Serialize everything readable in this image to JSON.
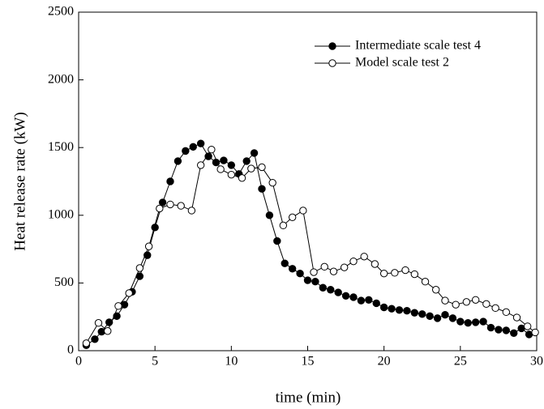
{
  "chart_data": {
    "type": "line",
    "xlabel": "time (min)",
    "ylabel": "Heat release rate (kW)",
    "xlim": [
      0,
      30
    ],
    "xticks": [
      0,
      5,
      10,
      15,
      20,
      25,
      30
    ],
    "ylim": [
      0,
      2500
    ],
    "yticks": [
      0,
      500,
      1000,
      1500,
      2000,
      2500
    ],
    "legend": "upper right",
    "series": [
      {
        "name": "Intermediate scale test 4",
        "color": "#000000",
        "marker": "filled",
        "x": [
          0.5,
          1.06,
          1.5,
          2,
          2.5,
          3,
          3.5,
          4,
          4.5,
          5,
          5.5,
          6,
          6.5,
          7,
          7.5,
          8,
          8.5,
          9,
          9.5,
          10,
          10.5,
          11,
          11.5,
          12,
          12.5,
          13,
          13.5,
          14,
          14.5,
          15,
          15.5,
          16,
          16.5,
          17,
          17.5,
          18,
          18.5,
          19,
          19.5,
          20,
          20.5,
          21,
          21.5,
          22,
          22.5,
          23,
          23.5,
          24,
          24.5,
          25,
          25.5,
          26,
          26.5,
          27,
          27.5,
          28,
          28.5,
          29,
          29.5
        ],
        "values": [
          40,
          85,
          140,
          210,
          255,
          340,
          435,
          550,
          705,
          910,
          1095,
          1250,
          1400,
          1475,
          1505,
          1530,
          1435,
          1390,
          1405,
          1370,
          1305,
          1400,
          1460,
          1195,
          1000,
          810,
          645,
          605,
          570,
          520,
          510,
          465,
          450,
          430,
          405,
          395,
          370,
          375,
          350,
          320,
          310,
          300,
          295,
          280,
          270,
          255,
          240,
          265,
          240,
          215,
          205,
          210,
          215,
          170,
          155,
          150,
          130,
          165,
          120
        ]
      },
      {
        "name": "Model scale test 2",
        "color": "#000000",
        "marker": "open",
        "x": [
          0.5,
          1.3,
          1.9,
          2.6,
          3.3,
          4,
          4.6,
          5.3,
          6,
          6.7,
          7.4,
          8,
          8.7,
          9.3,
          10,
          10.7,
          11.3,
          12,
          12.7,
          13.4,
          14,
          14.7,
          15.4,
          16.1,
          16.7,
          17.4,
          18,
          18.7,
          19.4,
          20,
          20.7,
          21.4,
          22,
          22.7,
          23.4,
          24,
          24.7,
          25.4,
          26,
          26.7,
          27.3,
          28,
          28.7,
          29.4,
          29.9
        ],
        "values": [
          55,
          205,
          145,
          330,
          425,
          610,
          770,
          1050,
          1080,
          1070,
          1035,
          1370,
          1485,
          1340,
          1300,
          1275,
          1345,
          1355,
          1240,
          925,
          985,
          1035,
          580,
          620,
          585,
          615,
          660,
          695,
          640,
          570,
          575,
          595,
          565,
          510,
          450,
          370,
          340,
          360,
          375,
          345,
          315,
          285,
          245,
          180,
          135
        ]
      }
    ]
  }
}
